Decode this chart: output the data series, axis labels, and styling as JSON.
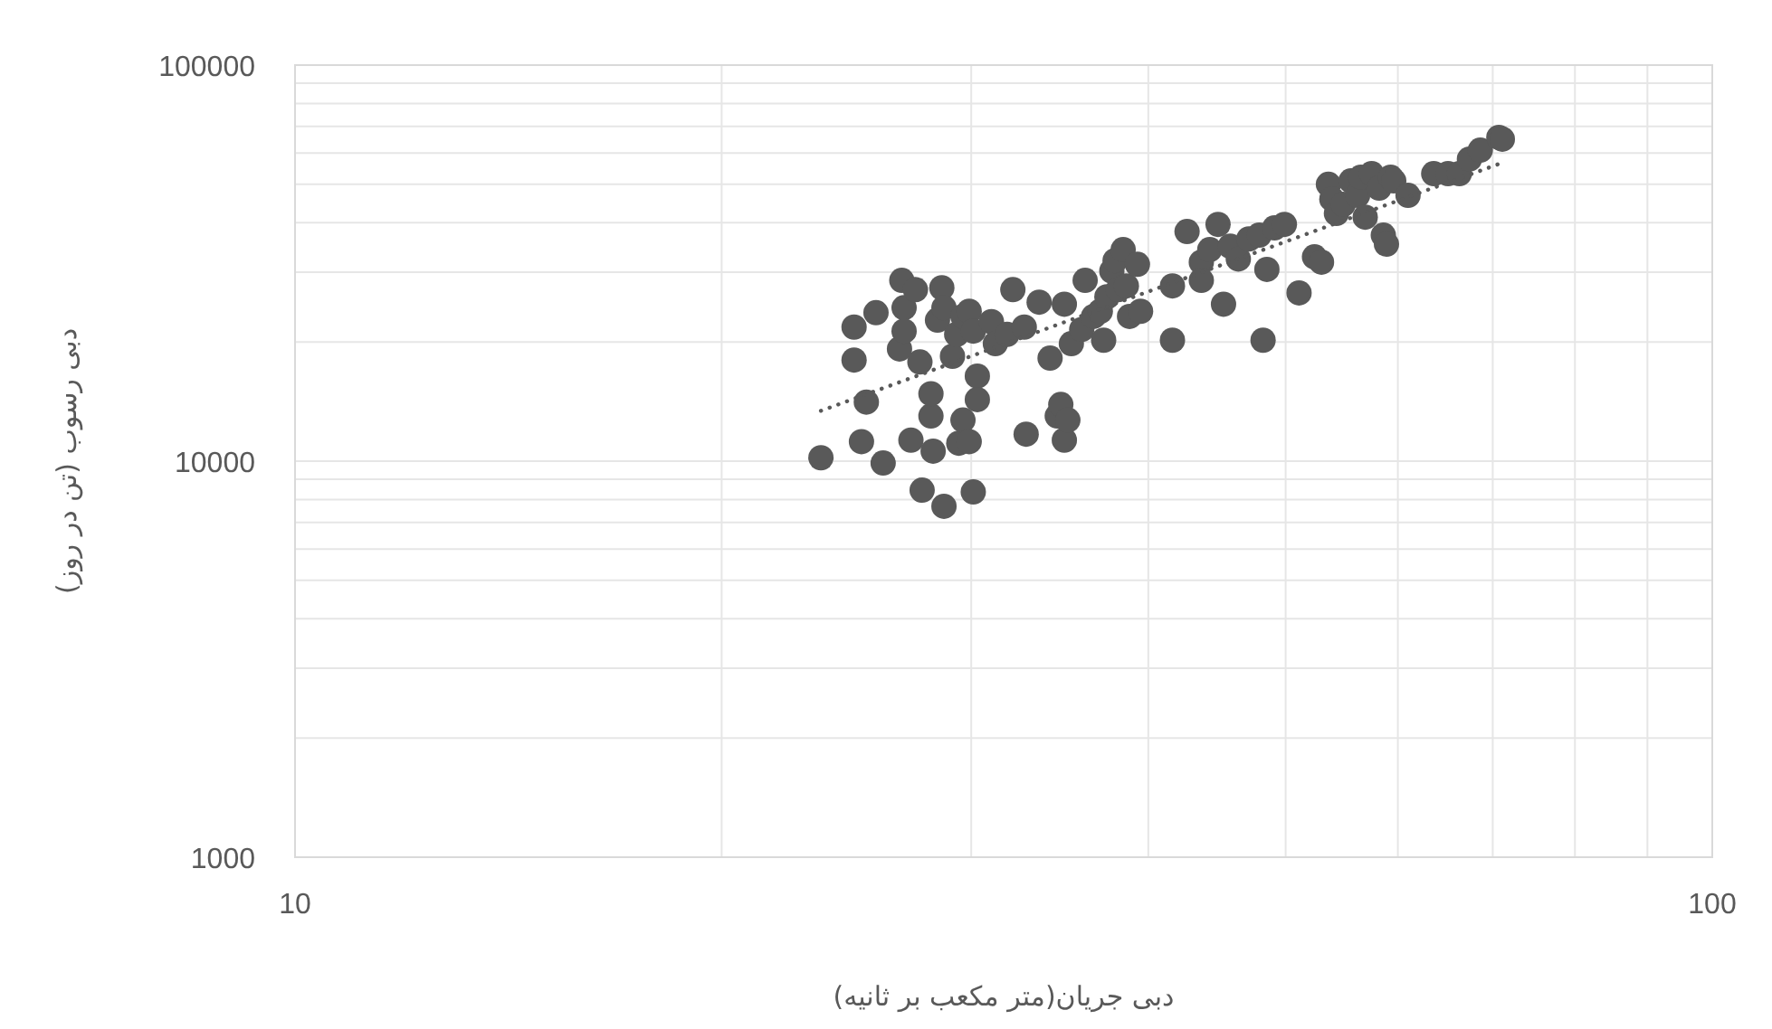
{
  "chart_data": {
    "type": "scatter",
    "xlabel": "دبی جریان(متر مکعب بر ثانیه)",
    "ylabel": "دبی رسوب (تن در روز)",
    "log": "xy",
    "grid": true,
    "xlim": [
      10,
      100
    ],
    "ylim": [
      1000,
      100000
    ],
    "xticks": [
      10,
      100
    ],
    "yticks": [
      1000,
      10000,
      100000
    ],
    "series": [
      {
        "type": "scatter",
        "color": "#595959",
        "marker": "circle",
        "x": [
          23.5,
          24.8,
          24.8,
          25.1,
          25.3,
          26.0,
          25.7,
          26.8,
          26.9,
          26.7,
          26.9,
          27.4,
          27.2,
          27.6,
          27.7,
          28.1,
          28.1,
          28.2,
          28.4,
          28.6,
          28.7,
          28.7,
          29.1,
          29.3,
          29.4,
          29.6,
          29.6,
          29.9,
          29.9,
          30.1,
          30.1,
          30.3,
          30.3,
          31.0,
          31.2,
          31.8,
          32.1,
          32.7,
          32.8,
          33.5,
          34.1,
          34.5,
          34.7,
          34.9,
          34.9,
          35.1,
          35.3,
          35.9,
          36.1,
          36.6,
          37.0,
          37.2,
          37.4,
          37.7,
          37.9,
          38.1,
          38.4,
          38.6,
          38.8,
          39.3,
          39.5,
          41.6,
          41.6,
          42.6,
          43.6,
          43.6,
          44.2,
          44.8,
          45.2,
          45.7,
          46.3,
          47.1,
          47.9,
          48.2,
          48.5,
          49.1,
          49.9,
          51.1,
          52.4,
          53.0,
          53.6,
          53.9,
          54.3,
          54.9,
          55.6,
          56.2,
          56.5,
          56.9,
          57.5,
          58.2,
          58.6,
          58.9,
          59.3,
          59.6,
          61.0,
          63.6,
          65.1,
          66.3,
          67.4,
          68.6,
          70.7,
          71.1
        ],
        "values": [
          10200,
          21800,
          18000,
          11200,
          14100,
          9890,
          23700,
          28600,
          24400,
          19200,
          21300,
          27100,
          11300,
          17800,
          8450,
          13000,
          14800,
          10600,
          22700,
          27400,
          7690,
          24400,
          18400,
          20900,
          11100,
          12700,
          23200,
          23900,
          11200,
          8360,
          21300,
          16400,
          14300,
          22500,
          19800,
          20900,
          27100,
          21800,
          11700,
          25200,
          18200,
          13000,
          13900,
          24900,
          11300,
          12700,
          19800,
          21500,
          28600,
          23200,
          23900,
          20200,
          26000,
          30200,
          32100,
          27100,
          34200,
          27700,
          23200,
          31400,
          23900,
          20200,
          27700,
          38000,
          31800,
          28600,
          34200,
          39600,
          24900,
          34900,
          32400,
          36400,
          37200,
          20200,
          30500,
          38800,
          39600,
          26600,
          32800,
          31800,
          50000,
          45900,
          42200,
          44500,
          51000,
          46900,
          52100,
          41300,
          53200,
          48900,
          37200,
          35300,
          52100,
          51000,
          46900,
          53200,
          53200,
          53200,
          57900,
          61000,
          65700,
          65000
        ]
      },
      {
        "type": "line",
        "color": "#595959",
        "line_style": "dotted",
        "x": [
          23.5,
          71.1
        ],
        "values": [
          13400,
          56700
        ]
      }
    ]
  }
}
